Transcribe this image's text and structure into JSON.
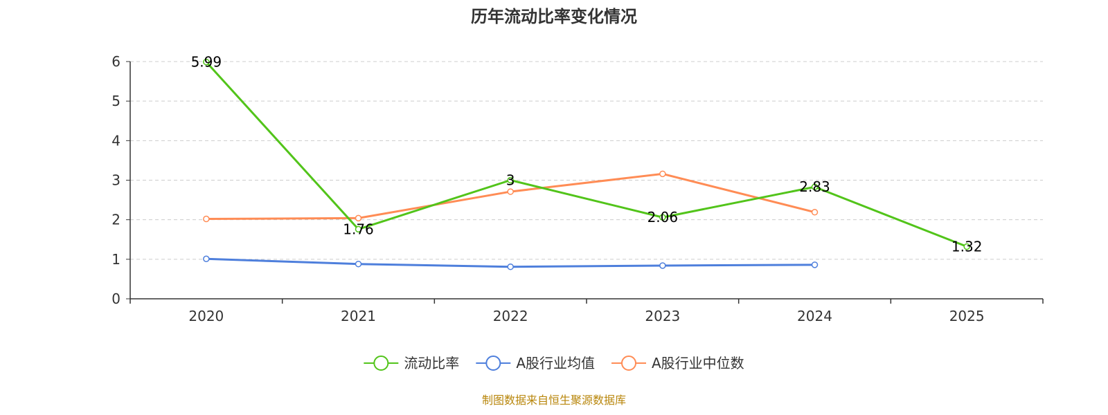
{
  "chart_data": {
    "type": "line",
    "title": "历年流动比率变化情况",
    "categories": [
      "2020",
      "2021",
      "2022",
      "2023",
      "2024",
      "2025"
    ],
    "ylim": [
      0,
      6
    ],
    "yticks": [
      "0",
      "1",
      "2",
      "3",
      "4",
      "5",
      "6"
    ],
    "grid": true,
    "legend_position": "bottom",
    "series": [
      {
        "name": "流动比率",
        "color": "#52c41a",
        "values": [
          5.99,
          1.76,
          3,
          2.06,
          2.83,
          1.32
        ],
        "labels": [
          "5.99",
          "1.76",
          "3",
          "2.06",
          "2.83",
          "1.32"
        ]
      },
      {
        "name": "A股行业均值",
        "color": "#4e7fdc",
        "values": [
          1.01,
          0.88,
          0.81,
          0.84,
          0.86,
          null
        ],
        "labels": []
      },
      {
        "name": "A股行业中位数",
        "color": "#ff8c55",
        "values": [
          2.02,
          2.04,
          2.71,
          3.16,
          2.19,
          null
        ],
        "labels": []
      }
    ],
    "source": "制图数据来自恒生聚源数据库"
  }
}
